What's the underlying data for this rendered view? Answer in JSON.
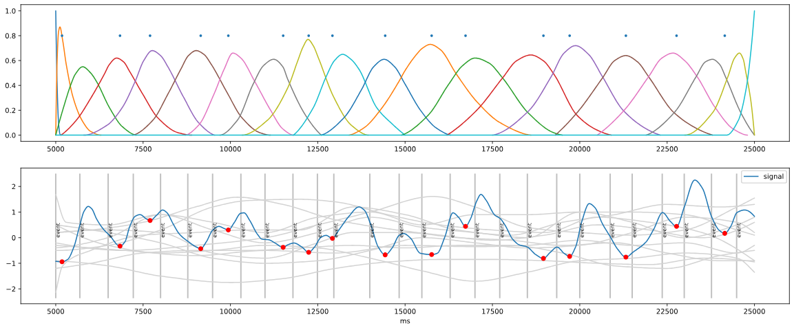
{
  "chart_data": [
    {
      "type": "line",
      "xlim": [
        4000,
        26000
      ],
      "xticks": [
        5000,
        7500,
        10000,
        12500,
        15000,
        17500,
        20000,
        22500,
        25000
      ],
      "ylim": [
        -0.05,
        1.05
      ],
      "yticks": [
        {
          "value": 0,
          "label": "0.0"
        },
        0.2,
        0.4,
        0.6,
        0.8,
        {
          "value": 1,
          "label": "1.0"
        }
      ],
      "series": [
        {
          "color": "#1f77b4",
          "x": [
            5000,
            5040,
            5080,
            5120,
            5150
          ],
          "values": [
            1.0,
            0.4,
            0.1,
            0.01,
            0
          ]
        },
        {
          "color": "#ff7f0e",
          "x": [
            5000,
            5040,
            5080,
            5120,
            5200,
            5300,
            5500,
            5750,
            6000,
            6300
          ],
          "values": [
            0,
            0.6,
            0.83,
            0.87,
            0.76,
            0.57,
            0.3,
            0.12,
            0.03,
            0
          ]
        },
        {
          "color": "#2ca02c",
          "x": [
            5000,
            5220,
            5450,
            5560,
            5770,
            6000,
            6170,
            6540,
            6900,
            7300
          ],
          "values": [
            0,
            0.22,
            0.42,
            0.49,
            0.55,
            0.5,
            0.43,
            0.22,
            0.07,
            0
          ]
        },
        {
          "color": "#d62728",
          "x": [
            5150,
            5590,
            6030,
            6390,
            6540,
            6740,
            6940,
            7120,
            7490,
            7920,
            8500,
            8900
          ],
          "values": [
            0,
            0.12,
            0.31,
            0.49,
            0.57,
            0.62,
            0.59,
            0.51,
            0.33,
            0.14,
            0.02,
            0
          ]
        },
        {
          "color": "#9467bd",
          "x": [
            5800,
            6470,
            6900,
            7270,
            7520,
            7760,
            8000,
            8210,
            8650,
            9090,
            9550
          ],
          "values": [
            0,
            0.08,
            0.22,
            0.43,
            0.6,
            0.68,
            0.64,
            0.55,
            0.31,
            0.1,
            0
          ]
        },
        {
          "color": "#8c564b",
          "x": [
            7200,
            7780,
            8210,
            8580,
            8800,
            9020,
            9240,
            9450,
            9890,
            10330,
            10840,
            11150
          ],
          "values": [
            0,
            0.12,
            0.33,
            0.53,
            0.64,
            0.68,
            0.65,
            0.57,
            0.35,
            0.14,
            0.02,
            0
          ]
        },
        {
          "color": "#e377c2",
          "x": [
            8700,
            9090,
            9530,
            9820,
            10070,
            10300,
            10700,
            11130,
            11500,
            11800
          ],
          "values": [
            0,
            0.08,
            0.33,
            0.53,
            0.66,
            0.62,
            0.43,
            0.21,
            0.05,
            0
          ]
        },
        {
          "color": "#7f7f7f",
          "x": [
            9700,
            10200,
            10650,
            10950,
            11240,
            11500,
            11640,
            12150,
            12600
          ],
          "values": [
            0,
            0.12,
            0.41,
            0.56,
            0.61,
            0.55,
            0.45,
            0.16,
            0
          ]
        },
        {
          "color": "#bcbd22",
          "x": [
            10330,
            11060,
            11640,
            11930,
            12080,
            12220,
            12370,
            12520,
            12950,
            13460,
            13950
          ],
          "values": [
            0,
            0.12,
            0.38,
            0.6,
            0.71,
            0.77,
            0.72,
            0.62,
            0.31,
            0.08,
            0
          ]
        },
        {
          "color": "#17becf",
          "x": [
            11800,
            12370,
            12740,
            12980,
            13210,
            13450,
            13680,
            14190,
            14630,
            15000
          ],
          "values": [
            0,
            0.22,
            0.47,
            0.6,
            0.65,
            0.61,
            0.53,
            0.22,
            0.09,
            0
          ]
        },
        {
          "color": "#1f77b4",
          "x": [
            12600,
            13250,
            13760,
            14100,
            14400,
            14700,
            15000,
            15440,
            15880,
            16300
          ],
          "values": [
            0,
            0.14,
            0.37,
            0.55,
            0.61,
            0.55,
            0.41,
            0.2,
            0.06,
            0
          ]
        },
        {
          "color": "#ff7f0e",
          "x": [
            13400,
            13830,
            14340,
            14820,
            15000,
            15300,
            15500,
            15720,
            16000,
            16470,
            17050,
            17720,
            18600
          ],
          "values": [
            0,
            0.06,
            0.22,
            0.43,
            0.52,
            0.64,
            0.7,
            0.73,
            0.69,
            0.49,
            0.27,
            0.1,
            0
          ]
        },
        {
          "color": "#2ca02c",
          "x": [
            14900,
            15660,
            16250,
            16650,
            17000,
            17400,
            17790,
            18520,
            19250,
            19500
          ],
          "values": [
            0,
            0.16,
            0.41,
            0.56,
            0.62,
            0.58,
            0.46,
            0.18,
            0.02,
            0
          ]
        },
        {
          "color": "#d62728",
          "x": [
            16200,
            17050,
            17790,
            18200,
            18600,
            18950,
            19260,
            19920,
            20500,
            20900
          ],
          "values": [
            0,
            0.2,
            0.46,
            0.6,
            0.645,
            0.6,
            0.49,
            0.16,
            0.04,
            0
          ]
        },
        {
          "color": "#9467bd",
          "x": [
            17500,
            18520,
            19180,
            19550,
            19880,
            20250,
            20650,
            21240,
            21970,
            22300
          ],
          "values": [
            0,
            0.19,
            0.47,
            0.66,
            0.72,
            0.65,
            0.47,
            0.2,
            0.04,
            0
          ]
        },
        {
          "color": "#8c564b",
          "x": [
            19300,
            19920,
            20650,
            21000,
            21320,
            21650,
            21970,
            22700,
            23440,
            23800
          ],
          "values": [
            0,
            0.18,
            0.46,
            0.6,
            0.64,
            0.59,
            0.47,
            0.18,
            0.04,
            0
          ]
        },
        {
          "color": "#e377c2",
          "x": [
            20500,
            21270,
            21970,
            22350,
            22670,
            23000,
            23360,
            23880,
            24390,
            24800
          ],
          "values": [
            0,
            0.2,
            0.47,
            0.62,
            0.66,
            0.6,
            0.47,
            0.22,
            0.05,
            0
          ]
        },
        {
          "color": "#7f7f7f",
          "x": [
            21900,
            22700,
            23330,
            23600,
            23800,
            24000,
            24170,
            24610,
            25000
          ],
          "values": [
            0,
            0.18,
            0.47,
            0.59,
            0.61,
            0.57,
            0.47,
            0.18,
            0
          ]
        },
        {
          "color": "#bcbd22",
          "x": [
            23000,
            23800,
            24240,
            24430,
            24570,
            24680,
            24750,
            24900,
            25000
          ],
          "values": [
            0,
            0.18,
            0.47,
            0.62,
            0.66,
            0.61,
            0.51,
            0.27,
            0
          ]
        },
        {
          "color": "#17becf",
          "x": [
            5000,
            24200,
            24540,
            24760,
            24900,
            25000
          ],
          "values": [
            0,
            0,
            0.12,
            0.37,
            0.68,
            1.0
          ]
        },
        {
          "type": "scatter",
          "marker": "circle",
          "color": "#1f77b4",
          "x": [
            5180,
            6840,
            7700,
            9150,
            9940,
            11510,
            12240,
            12920,
            14430,
            15760,
            16730,
            18960,
            19710,
            21320,
            22770,
            24150
          ],
          "values": [
            0.8,
            0.8,
            0.8,
            0.8,
            0.8,
            0.8,
            0.8,
            0.8,
            0.8,
            0.8,
            0.8,
            0.8,
            0.8,
            0.8,
            0.8,
            0.8
          ]
        }
      ]
    },
    {
      "type": "line",
      "xlabel": "ms",
      "xlim": [
        4000,
        26000
      ],
      "xticks": [
        5000,
        7500,
        10000,
        12500,
        15000,
        17500,
        20000,
        22500,
        25000
      ],
      "ylim": [
        -2.58,
        2.72
      ],
      "yticks": [
        {
          "value": -2,
          "label": "−2"
        },
        {
          "value": -1,
          "label": "−1"
        },
        0,
        1,
        2
      ],
      "legend": "top right",
      "ref_lines": [
        {
          "axis": "x",
          "value": 5000,
          "label": "event",
          "color": "#bfbfbf"
        },
        {
          "axis": "x",
          "value": 5690,
          "label": "event",
          "color": "#bfbfbf"
        },
        {
          "axis": "x",
          "value": 6500,
          "label": "event",
          "color": "#bfbfbf"
        },
        {
          "axis": "x",
          "value": 7220,
          "label": "event",
          "color": "#bfbfbf"
        },
        {
          "axis": "x",
          "value": 8000,
          "label": "event",
          "color": "#bfbfbf"
        },
        {
          "axis": "x",
          "value": 8780,
          "label": "event",
          "color": "#bfbfbf"
        },
        {
          "axis": "x",
          "value": 9490,
          "label": "event",
          "color": "#bfbfbf"
        },
        {
          "axis": "x",
          "value": 10300,
          "label": "event",
          "color": "#bfbfbf"
        },
        {
          "axis": "x",
          "value": 10990,
          "label": "event",
          "color": "#bfbfbf"
        },
        {
          "axis": "x",
          "value": 11790,
          "label": "event",
          "color": "#bfbfbf"
        },
        {
          "axis": "x",
          "value": 12490,
          "label": "event",
          "color": "#bfbfbf"
        },
        {
          "axis": "x",
          "value": 12960,
          "label": "event",
          "color": "#bfbfbf"
        },
        {
          "axis": "x",
          "value": 13990,
          "label": "event",
          "color": "#bfbfbf"
        },
        {
          "axis": "x",
          "value": 14830,
          "label": "event",
          "color": "#bfbfbf"
        },
        {
          "axis": "x",
          "value": 15480,
          "label": "event",
          "color": "#bfbfbf"
        },
        {
          "axis": "x",
          "value": 16290,
          "label": "event",
          "color": "#bfbfbf"
        },
        {
          "axis": "x",
          "value": 17000,
          "label": "event",
          "color": "#bfbfbf"
        },
        {
          "axis": "x",
          "value": 17710,
          "label": "event",
          "color": "#bfbfbf"
        },
        {
          "axis": "x",
          "value": 18500,
          "label": "event",
          "color": "#bfbfbf"
        },
        {
          "axis": "x",
          "value": 19340,
          "label": "event",
          "color": "#bfbfbf"
        },
        {
          "axis": "x",
          "value": 20000,
          "label": "event",
          "color": "#bfbfbf"
        },
        {
          "axis": "x",
          "value": 20870,
          "label": "event",
          "color": "#bfbfbf"
        },
        {
          "axis": "x",
          "value": 21500,
          "label": "event",
          "color": "#bfbfbf"
        },
        {
          "axis": "x",
          "value": 22360,
          "label": "event",
          "color": "#bfbfbf"
        },
        {
          "axis": "x",
          "value": 22990,
          "label": "event",
          "color": "#bfbfbf"
        },
        {
          "axis": "x",
          "value": 23770,
          "label": "event",
          "color": "#bfbfbf"
        },
        {
          "axis": "x",
          "value": 24490,
          "label": "event",
          "color": "#bfbfbf"
        }
      ],
      "series": [
        {
          "color": "#d3d3d3",
          "x": [
            5000,
            6000,
            7500,
            9000,
            10200,
            11500,
            13000,
            14500,
            16000,
            17500,
            19000,
            20500,
            22000,
            23500,
            25000
          ],
          "values": [
            0.2,
            0.3,
            0.6,
            1.2,
            1.58,
            1.3,
            0.7,
            0.35,
            0.1,
            -0.1,
            0.1,
            0.5,
            0.3,
            0.0,
            0.6
          ]
        },
        {
          "color": "#d3d3d3",
          "x": [
            5000,
            6500,
            8000,
            9500,
            10500,
            12000,
            13000,
            14500,
            16000,
            17500,
            19000,
            20500,
            22000,
            23500,
            25000
          ],
          "values": [
            -0.5,
            -0.3,
            0.3,
            1.2,
            1.45,
            1.5,
            1.4,
            0.9,
            0.5,
            0.3,
            0.2,
            0.8,
            0.6,
            0.2,
            -0.9
          ]
        },
        {
          "color": "#d3d3d3",
          "x": [
            5000,
            7000,
            9000,
            11000,
            12500,
            14000,
            15800,
            17000,
            18500,
            20000,
            21500,
            23000,
            24500,
            25000
          ],
          "values": [
            -0.2,
            -0.5,
            -0.3,
            0.0,
            0.5,
            1.0,
            1.61,
            1.2,
            0.4,
            0.2,
            0.1,
            0.3,
            1.2,
            1.55
          ]
        },
        {
          "color": "#d3d3d3",
          "x": [
            5000,
            6500,
            8000,
            10000,
            11500,
            13000,
            14500,
            16000,
            17500,
            19000,
            20500,
            22000,
            23500,
            25000
          ],
          "values": [
            -0.9,
            -1.1,
            -1.5,
            -1.75,
            -1.6,
            -1.2,
            -0.95,
            -0.85,
            -0.85,
            -0.9,
            -1.0,
            -1.05,
            -0.8,
            -0.95
          ]
        },
        {
          "color": "#d3d3d3",
          "x": [
            5000,
            6500,
            8000,
            9500,
            11000,
            12500,
            14000,
            15500,
            17000,
            18500,
            20000,
            21500,
            23000,
            24500,
            25000
          ],
          "values": [
            0.5,
            -0.3,
            -0.6,
            -0.5,
            -0.3,
            -0.4,
            -0.8,
            -1.3,
            -1.7,
            -1.35,
            -0.9,
            -0.8,
            -0.6,
            -0.8,
            -1.35
          ]
        },
        {
          "color": "#d3d3d3",
          "x": [
            5000,
            6000,
            7500,
            9000,
            10500,
            12000,
            13500,
            15000,
            16500,
            18000,
            19500,
            21000,
            22500,
            24000,
            25000
          ],
          "values": [
            -1.2,
            -1.0,
            -0.6,
            -0.5,
            -0.5,
            -0.4,
            -0.3,
            -0.4,
            -0.3,
            -0.3,
            -0.6,
            -1.1,
            -1.2,
            -0.7,
            -0.5
          ]
        },
        {
          "color": "#d3d3d3",
          "x": [
            5000,
            5300,
            6500,
            8000,
            9500,
            11000,
            12500,
            14000,
            15500,
            17000,
            18500,
            20000,
            21500,
            23000,
            24500,
            25000
          ],
          "values": [
            1.69,
            0.6,
            0.5,
            0.9,
            0.6,
            0.2,
            0.8,
            1.0,
            0.5,
            0.9,
            0.9,
            1.0,
            1.0,
            0.9,
            0.3,
            0.1
          ]
        },
        {
          "color": "#d3d3d3",
          "x": [
            5000,
            5200,
            6000,
            7500,
            9000,
            10500,
            12000,
            13500,
            15000,
            16500,
            18000,
            19500,
            21000,
            22500,
            24000,
            25000
          ],
          "values": [
            -2.14,
            -1.1,
            -0.5,
            0.1,
            0.2,
            0.3,
            0.3,
            1.2,
            0.9,
            0.3,
            0.1,
            0.6,
            0.9,
            1.3,
            1.2,
            1.3
          ]
        },
        {
          "color": "#d3d3d3",
          "x": [
            5000,
            6500,
            8000,
            9500,
            11000,
            12500,
            13500,
            15000,
            16500,
            18000,
            19500,
            21000,
            22500,
            24000,
            25000
          ],
          "values": [
            0.2,
            0.3,
            0.2,
            -0.6,
            -0.8,
            -0.2,
            0.2,
            0.2,
            0.0,
            -0.1,
            -0.3,
            -0.2,
            -0.6,
            -0.9,
            -0.9
          ]
        },
        {
          "color": "#d3d3d3",
          "x": [
            5000,
            6500,
            8000,
            9500,
            11000,
            12500,
            14000,
            15500,
            17000,
            18500,
            20000,
            21500,
            23000,
            24500,
            25000
          ],
          "values": [
            -0.4,
            0.0,
            0.9,
            0.3,
            -0.2,
            0.2,
            0.8,
            0.4,
            0.2,
            0.0,
            1.0,
            0.6,
            0.0,
            0.5,
            0.8
          ]
        },
        {
          "color": "#d3d3d3",
          "x": [
            5000,
            6500,
            8000,
            9500,
            11000,
            12500,
            14000,
            15500,
            17000,
            18500,
            20000,
            21500,
            23000,
            24500,
            25000
          ],
          "values": [
            0.5,
            0.2,
            -0.2,
            -0.8,
            -1.0,
            -0.9,
            -0.5,
            0.0,
            -0.2,
            -0.4,
            -0.3,
            0.2,
            0.8,
            0.6,
            0.2
          ]
        },
        {
          "color": "#d3d3d3",
          "x": [
            5000,
            7000,
            9000,
            11000,
            13000,
            15000,
            17000,
            18500,
            20000,
            21500,
            23000,
            24500,
            25000
          ],
          "values": [
            -0.3,
            -0.5,
            -0.7,
            -0.5,
            -0.6,
            -0.3,
            -0.35,
            -0.3,
            -0.1,
            -0.3,
            -0.2,
            -0.6,
            -0.3
          ]
        },
        {
          "name": "signal",
          "color": "#1f77b4",
          "x": [
            5000,
            5180,
            5340,
            5520,
            5690,
            5810,
            5930,
            6030,
            6170,
            6360,
            6540,
            6840,
            6980,
            7120,
            7270,
            7410,
            7600,
            7700,
            7890,
            8060,
            8180,
            8360,
            8540,
            8800,
            9020,
            9150,
            9310,
            9490,
            9670,
            9820,
            9940,
            10110,
            10290,
            10390,
            10550,
            10770,
            10910,
            11090,
            11280,
            11510,
            11640,
            11820,
            12040,
            12240,
            12410,
            12590,
            12740,
            12920,
            13100,
            13390,
            13680,
            13830,
            14010,
            14230,
            14430,
            14630,
            14830,
            14960,
            15150,
            15440,
            15760,
            15920,
            16140,
            16370,
            16540,
            16730,
            16870,
            17050,
            17170,
            17310,
            17570,
            17720,
            17860,
            18080,
            18270,
            18490,
            18740,
            18960,
            19150,
            19350,
            19550,
            19710,
            19880,
            20060,
            20270,
            20430,
            20650,
            20870,
            21090,
            21320,
            21530,
            21900,
            22120,
            22370,
            22590,
            22770,
            23000,
            23290,
            23510,
            23770,
            23990,
            24150,
            24320,
            24500,
            24720,
            25000
          ],
          "values": [
            -0.92,
            -0.94,
            -0.85,
            -0.36,
            0.49,
            1.03,
            1.22,
            1.13,
            0.73,
            0.34,
            0.09,
            -0.33,
            -0.16,
            0.44,
            0.83,
            0.9,
            0.73,
            0.67,
            0.88,
            1.08,
            0.98,
            0.54,
            0.14,
            -0.16,
            -0.36,
            -0.43,
            -0.16,
            0.29,
            0.44,
            0.36,
            0.3,
            0.59,
            0.95,
            0.97,
            0.68,
            0.14,
            -0.06,
            -0.08,
            -0.21,
            -0.38,
            -0.28,
            -0.21,
            -0.36,
            -0.57,
            -0.36,
            0.01,
            0.09,
            -0.03,
            0.29,
            0.83,
            1.2,
            1.08,
            0.54,
            -0.36,
            -0.67,
            -0.4,
            0.09,
            0.16,
            -0.01,
            -0.61,
            -0.66,
            -0.61,
            0.04,
            0.97,
            0.78,
            0.44,
            0.73,
            1.43,
            1.69,
            1.48,
            0.88,
            0.75,
            0.49,
            -0.06,
            -0.28,
            -0.36,
            -0.66,
            -0.81,
            -0.58,
            -0.37,
            -0.61,
            -0.73,
            -0.36,
            0.64,
            1.33,
            1.18,
            0.54,
            0.04,
            -0.46,
            -0.76,
            -0.56,
            -0.16,
            0.34,
            0.98,
            0.64,
            0.44,
            1.23,
            2.25,
            1.93,
            0.83,
            0.29,
            0.17,
            0.44,
            0.98,
            1.08,
            0.83
          ]
        },
        {
          "type": "scatter",
          "marker": "circle",
          "color": "#ff0000",
          "x": [
            5180,
            6840,
            7700,
            9150,
            9940,
            11510,
            12240,
            12920,
            14430,
            15760,
            16730,
            18960,
            19710,
            21320,
            22770,
            24150
          ],
          "values": [
            -0.94,
            -0.33,
            0.67,
            -0.43,
            0.3,
            -0.38,
            -0.57,
            -0.03,
            -0.67,
            -0.66,
            0.44,
            -0.81,
            -0.73,
            -0.76,
            0.44,
            0.17
          ]
        }
      ]
    }
  ]
}
